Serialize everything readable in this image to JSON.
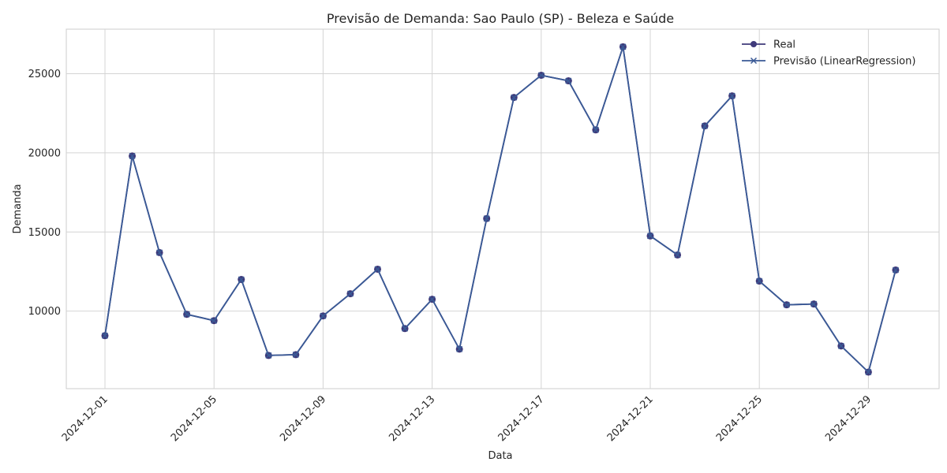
{
  "chart_data": {
    "type": "line",
    "title": "Previsão de Demanda: Sao Paulo (SP) - Beleza e Saúde",
    "xlabel": "Data",
    "ylabel": "Demanda",
    "x": [
      "2024-12-01",
      "2024-12-02",
      "2024-12-03",
      "2024-12-04",
      "2024-12-05",
      "2024-12-06",
      "2024-12-07",
      "2024-12-08",
      "2024-12-09",
      "2024-12-10",
      "2024-12-11",
      "2024-12-12",
      "2024-12-13",
      "2024-12-14",
      "2024-12-15",
      "2024-12-16",
      "2024-12-17",
      "2024-12-18",
      "2024-12-19",
      "2024-12-20",
      "2024-12-21",
      "2024-12-22",
      "2024-12-23",
      "2024-12-24",
      "2024-12-25",
      "2024-12-26",
      "2024-12-27",
      "2024-12-28",
      "2024-12-29",
      "2024-12-30"
    ],
    "x_ticks": [
      "2024-12-01",
      "2024-12-05",
      "2024-12-09",
      "2024-12-13",
      "2024-12-17",
      "2024-12-21",
      "2024-12-25",
      "2024-12-29"
    ],
    "y_ticks": [
      10000,
      15000,
      20000,
      25000
    ],
    "ylim": [
      5000,
      27800
    ],
    "grid": true,
    "legend_position": "top-right",
    "series": [
      {
        "name": "Real",
        "marker": "circle",
        "color": "#3f3a7a",
        "values": [
          8450,
          19800,
          13700,
          9800,
          9400,
          12000,
          7200,
          7250,
          9700,
          11100,
          12650,
          8900,
          10750,
          7600,
          15850,
          23500,
          24900,
          24550,
          21450,
          26700,
          14750,
          13550,
          21700,
          23600,
          11900,
          10400,
          10450,
          7800,
          6150,
          12600
        ]
      },
      {
        "name": "Previsão (LinearRegression)",
        "marker": "x",
        "color": "#3a5a96",
        "values": [
          8450,
          19800,
          13700,
          9800,
          9400,
          12000,
          7200,
          7250,
          9700,
          11100,
          12650,
          8900,
          10750,
          7600,
          15850,
          23500,
          24900,
          24550,
          21450,
          26700,
          14750,
          13550,
          21700,
          23600,
          11900,
          10400,
          10450,
          7800,
          6150,
          12600
        ]
      }
    ]
  }
}
